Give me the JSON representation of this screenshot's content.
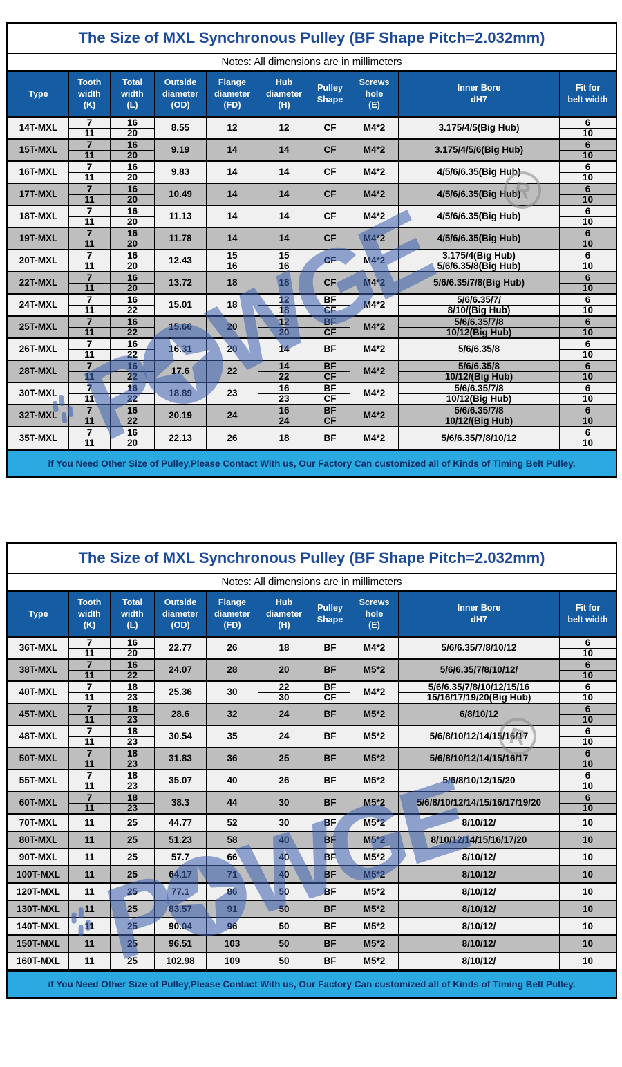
{
  "columns": [
    "Type",
    "Tooth\nwidth\n(K)",
    "Total\nwidth\n(L)",
    "Outside\ndiameter\n(OD)",
    "Flange\ndiameter\n(FD)",
    "Hub\ndiameter\n(H)",
    "Pulley\nShape",
    "Screws\nhole\n(E)",
    "Inner Bore\ndH7",
    "Fit for\nbelt width"
  ],
  "table1": {
    "title": "The Size of MXL Synchronous Pulley (BF Shape Pitch=2.032mm)",
    "notes": "Notes: All dimensions are in millimeters",
    "footer": "if You Need Other Size of Pulley,Please Contact With us, Our Factory Can customized all of Kinds of Timing Belt Pulley.",
    "rows": [
      {
        "type": "14T-MXL",
        "k": [
          "7",
          "11"
        ],
        "l": [
          "16",
          "20"
        ],
        "od": "8.55",
        "fd": "12",
        "h": "12",
        "shape": "CF",
        "e": "M4*2",
        "bore": "3.175/4/5(Big Hub)",
        "fit": [
          "6",
          "10"
        ]
      },
      {
        "type": "15T-MXL",
        "k": [
          "7",
          "11"
        ],
        "l": [
          "16",
          "20"
        ],
        "od": "9.19",
        "fd": "14",
        "h": "14",
        "shape": "CF",
        "e": "M4*2",
        "bore": "3.175/4/5/6(Big Hub)",
        "fit": [
          "6",
          "10"
        ]
      },
      {
        "type": "16T-MXL",
        "k": [
          "7",
          "11"
        ],
        "l": [
          "16",
          "20"
        ],
        "od": "9.83",
        "fd": "14",
        "h": "14",
        "shape": "CF",
        "e": "M4*2",
        "bore": "4/5/6/6.35(Big Hub)",
        "fit": [
          "6",
          "10"
        ]
      },
      {
        "type": "17T-MXL",
        "k": [
          "7",
          "11"
        ],
        "l": [
          "16",
          "20"
        ],
        "od": "10.49",
        "fd": "14",
        "h": "14",
        "shape": "CF",
        "e": "M4*2",
        "bore": "4/5/6/6.35(Big Hub)",
        "fit": [
          "6",
          "10"
        ]
      },
      {
        "type": "18T-MXL",
        "k": [
          "7",
          "11"
        ],
        "l": [
          "16",
          "20"
        ],
        "od": "11.13",
        "fd": "14",
        "h": "14",
        "shape": "CF",
        "e": "M4*2",
        "bore": "4/5/6/6.35(Big Hub)",
        "fit": [
          "6",
          "10"
        ]
      },
      {
        "type": "19T-MXL",
        "k": [
          "7",
          "11"
        ],
        "l": [
          "16",
          "20"
        ],
        "od": "11.78",
        "fd": "14",
        "h": "14",
        "shape": "CF",
        "e": "M4*2",
        "bore": "4/5/6/6.35(Big Hub)",
        "fit": [
          "6",
          "10"
        ]
      },
      {
        "type": "20T-MXL",
        "k": [
          "7",
          "11"
        ],
        "l": [
          "16",
          "20"
        ],
        "od": "12.43",
        "fd": [
          "15",
          "16"
        ],
        "h": [
          "15",
          "16"
        ],
        "shape": "CF",
        "e": "M4*2",
        "bore": [
          "3.175/4(Big Hub)",
          "5/6/6.35/8(Big Hub)"
        ],
        "fit": [
          "6",
          "10"
        ]
      },
      {
        "type": "22T-MXL",
        "k": [
          "7",
          "11"
        ],
        "l": [
          "16",
          "20"
        ],
        "od": "13.72",
        "fd": "18",
        "h": "18",
        "shape": "CF",
        "e": "M4*2",
        "bore": "5/6/6.35/7/8(Big Hub)",
        "fit": [
          "6",
          "10"
        ]
      },
      {
        "type": "24T-MXL",
        "k": [
          "7",
          "11"
        ],
        "l": [
          "16",
          "22"
        ],
        "od": "15.01",
        "fd": "18",
        "h": [
          "12",
          "18"
        ],
        "shape": [
          "BF",
          "CF"
        ],
        "e": "M4*2",
        "bore": [
          "5/6/6.35/7/",
          "8/10/(Big Hub)"
        ],
        "fit": [
          "6",
          "10"
        ]
      },
      {
        "type": "25T-MXL",
        "k": [
          "7",
          "11"
        ],
        "l": [
          "16",
          "22"
        ],
        "od": "15.66",
        "fd": "20",
        "h": [
          "12",
          "20"
        ],
        "shape": [
          "BF",
          "CF"
        ],
        "e": "M4*2",
        "bore": [
          "5/6/6.35/7/8",
          "10/12(Big Hub)"
        ],
        "fit": [
          "6",
          "10"
        ]
      },
      {
        "type": "26T-MXL",
        "k": [
          "7",
          "11"
        ],
        "l": [
          "16",
          "22"
        ],
        "od": "16.31",
        "fd": "20",
        "h": "14",
        "shape": "BF",
        "e": "M4*2",
        "bore": "5/6/6.35/8",
        "fit": [
          "6",
          "10"
        ]
      },
      {
        "type": "28T-MXL",
        "k": [
          "7",
          "11"
        ],
        "l": [
          "16",
          "22"
        ],
        "od": "17.6",
        "fd": "22",
        "h": [
          "14",
          "22"
        ],
        "shape": [
          "BF",
          "CF"
        ],
        "e": "M4*2",
        "bore": [
          "5/6/6.35/8",
          "10/12/(Big Hub)"
        ],
        "fit": [
          "6",
          "10"
        ]
      },
      {
        "type": "30T-MXL",
        "k": [
          "7",
          "11"
        ],
        "l": [
          "16",
          "22"
        ],
        "od": "18.89",
        "fd": "23",
        "h": [
          "16",
          "23"
        ],
        "shape": [
          "BF",
          "CF"
        ],
        "e": "M4*2",
        "bore": [
          "5/6/6.35/7/8",
          "10/12(Big Hub)"
        ],
        "fit": [
          "6",
          "10"
        ]
      },
      {
        "type": "32T-MXL",
        "k": [
          "7",
          "11"
        ],
        "l": [
          "16",
          "22"
        ],
        "od": "20.19",
        "fd": "24",
        "h": [
          "16",
          "24"
        ],
        "shape": [
          "BF",
          "CF"
        ],
        "e": "M4*2",
        "bore": [
          "5/6/6.35/7/8",
          "10/12/(Big Hub)"
        ],
        "fit": [
          "6",
          "10"
        ]
      },
      {
        "type": "35T-MXL",
        "k": [
          "7",
          "11"
        ],
        "l": [
          "16",
          "20"
        ],
        "od": "22.13",
        "fd": "26",
        "h": "18",
        "shape": "BF",
        "e": "M4*2",
        "bore": "5/6/6.35/7/8/10/12",
        "fit": [
          "6",
          "10"
        ]
      }
    ]
  },
  "table2": {
    "title": "The Size of MXL Synchronous Pulley (BF Shape Pitch=2.032mm)",
    "notes": "Notes: All dimensions are in millimeters",
    "footer": "if You Need Other Size of Pulley,Please Contact With us, Our Factory Can customized all of Kinds of Timing Belt Pulley.",
    "rows": [
      {
        "type": "36T-MXL",
        "k": [
          "7",
          "11"
        ],
        "l": [
          "16",
          "20"
        ],
        "od": "22.77",
        "fd": "26",
        "h": "18",
        "shape": "BF",
        "e": "M4*2",
        "bore": "5/6/6.35/7/8/10/12",
        "fit": [
          "6",
          "10"
        ]
      },
      {
        "type": "38T-MXL",
        "k": [
          "7",
          "11"
        ],
        "l": [
          "16",
          "22"
        ],
        "od": "24.07",
        "fd": "28",
        "h": "20",
        "shape": "BF",
        "e": "M5*2",
        "bore": "5/6/6.35/7/8/10/12/",
        "fit": [
          "6",
          "10"
        ]
      },
      {
        "type": "40T-MXL",
        "k": [
          "7",
          "11"
        ],
        "l": [
          "18",
          "23"
        ],
        "od": "25.36",
        "fd": "30",
        "h": [
          "22",
          "30"
        ],
        "shape": [
          "BF",
          "CF"
        ],
        "e": "M4*2",
        "bore": [
          "5/6/6.35/7/8/10/12/15/16",
          "15/16/17/19/20(Big Hub)"
        ],
        "fit": [
          "6",
          "10"
        ]
      },
      {
        "type": "45T-MXL",
        "k": [
          "7",
          "11"
        ],
        "l": [
          "18",
          "23"
        ],
        "od": "28.6",
        "fd": "32",
        "h": "24",
        "shape": "BF",
        "e": "M5*2",
        "bore": "6/8/10/12",
        "fit": [
          "6",
          "10"
        ]
      },
      {
        "type": "48T-MXL",
        "k": [
          "7",
          "11"
        ],
        "l": [
          "18",
          "23"
        ],
        "od": "30.54",
        "fd": "35",
        "h": "24",
        "shape": "BF",
        "e": "M5*2",
        "bore": "5/6/8/10/12/14/15/16/17",
        "fit": [
          "6",
          "10"
        ]
      },
      {
        "type": "50T-MXL",
        "k": [
          "7",
          "11"
        ],
        "l": [
          "18",
          "23"
        ],
        "od": "31.83",
        "fd": "36",
        "h": "25",
        "shape": "BF",
        "e": "M5*2",
        "bore": "5/6/8/10/12/14/15/16/17",
        "fit": [
          "6",
          "10"
        ]
      },
      {
        "type": "55T-MXL",
        "k": [
          "7",
          "11"
        ],
        "l": [
          "18",
          "23"
        ],
        "od": "35.07",
        "fd": "40",
        "h": "26",
        "shape": "BF",
        "e": "M5*2",
        "bore": "5/6/8/10/12/15/20",
        "fit": [
          "6",
          "10"
        ]
      },
      {
        "type": "60T-MXL",
        "k": [
          "7",
          "11"
        ],
        "l": [
          "18",
          "23"
        ],
        "od": "38.3",
        "fd": "44",
        "h": "30",
        "shape": "BF",
        "e": "M5*2",
        "bore": "5/6/8/10/12/14/15/16/17/19/20",
        "fit": [
          "6",
          "10"
        ]
      },
      {
        "type": "70T-MXL",
        "k": "11",
        "l": "25",
        "od": "44.77",
        "fd": "52",
        "h": "30",
        "shape": "BF",
        "e": "M5*2",
        "bore": "8/10/12/",
        "fit": "10"
      },
      {
        "type": "80T-MXL",
        "k": "11",
        "l": "25",
        "od": "51.23",
        "fd": "58",
        "h": "40",
        "shape": "BF",
        "e": "M5*2",
        "bore": "8/10/12/14/15/16/17/20",
        "fit": "10"
      },
      {
        "type": "90T-MXL",
        "k": "11",
        "l": "25",
        "od": "57.7",
        "fd": "66",
        "h": "40",
        "shape": "BF",
        "e": "M5*2",
        "bore": "8/10/12/",
        "fit": "10"
      },
      {
        "type": "100T-MXL",
        "k": "11",
        "l": "25",
        "od": "64.17",
        "fd": "71",
        "h": "40",
        "shape": "BF",
        "e": "M5*2",
        "bore": "8/10/12/",
        "fit": "10"
      },
      {
        "type": "120T-MXL",
        "k": "11",
        "l": "25",
        "od": "77.1",
        "fd": "86",
        "h": "50",
        "shape": "BF",
        "e": "M5*2",
        "bore": "8/10/12/",
        "fit": "10"
      },
      {
        "type": "130T-MXL",
        "k": "11",
        "l": "25",
        "od": "83.57",
        "fd": "91",
        "h": "50",
        "shape": "BF",
        "e": "M5*2",
        "bore": "8/10/12/",
        "fit": "10"
      },
      {
        "type": "140T-MXL",
        "k": "11",
        "l": "25",
        "od": "90.04",
        "fd": "96",
        "h": "50",
        "shape": "BF",
        "e": "M5*2",
        "bore": "8/10/12/",
        "fit": "10"
      },
      {
        "type": "150T-MXL",
        "k": "11",
        "l": "25",
        "od": "96.51",
        "fd": "103",
        "h": "50",
        "shape": "BF",
        "e": "M5*2",
        "bore": "8/10/12/",
        "fit": "10"
      },
      {
        "type": "160T-MXL",
        "k": "11",
        "l": "25",
        "od": "102.98",
        "fd": "109",
        "h": "50",
        "shape": "BF",
        "e": "M5*2",
        "bore": "8/10/12/",
        "fit": "10"
      }
    ]
  },
  "watermark": {
    "brand": "POWGE",
    "p": "P",
    "rest": "WGE",
    "registered": "R"
  },
  "colors": {
    "header_bg": "#155CA2",
    "header_text": "#FFFFFF",
    "row_light": "#F0F0F0",
    "row_gray": "#BEBEBE",
    "banner_bg": "#2BAAE2",
    "banner_text": "#0A2E68",
    "title_text": "#1B4A9B",
    "border": "#000000",
    "watermark_blue": "#3D62B0",
    "reg_gray": "#8A8A8A"
  }
}
